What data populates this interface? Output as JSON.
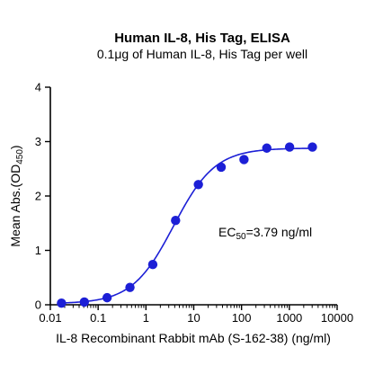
{
  "chart_data": {
    "type": "scatter",
    "title": "Human IL-8, His Tag, ELISA",
    "subtitle": "0.1μg of Human IL-8, His Tag per well",
    "xlabel": "IL-8 Recombinant Rabbit mAb (S-162-38) (ng/ml)",
    "ylabel_prefix": "Mean Abs.(OD",
    "ylabel_sub": "450",
    "ylabel_suffix": ")",
    "x_scale": "log",
    "xlim": [
      0.01,
      10000
    ],
    "ylim": [
      0,
      4
    ],
    "x_ticks": [
      0.01,
      0.1,
      1,
      10,
      100,
      1000,
      10000
    ],
    "x_tick_labels": [
      "0.01",
      "0.1",
      "1",
      "10",
      "100",
      "1000",
      "10000"
    ],
    "y_ticks": [
      0,
      1,
      2,
      3,
      4
    ],
    "y_tick_labels": [
      "0",
      "1",
      "2",
      "3",
      "4"
    ],
    "grid": false,
    "series": [
      {
        "x": [
          0.0171,
          0.0514,
          0.154,
          0.463,
          1.39,
          4.17,
          12.5,
          37.5,
          112.5,
          337.5,
          1012.5,
          3037.5
        ],
        "y": [
          0.03,
          0.05,
          0.13,
          0.32,
          0.74,
          1.55,
          2.21,
          2.53,
          2.67,
          2.88,
          2.9,
          2.9
        ],
        "color": "#1c1fd6"
      }
    ],
    "fit": {
      "model": "4PL",
      "bottom": 0.02,
      "top": 2.88,
      "ec50": 3.79,
      "hill": 1.0,
      "color": "#1c1fd6"
    },
    "annotation": {
      "prefix": "EC",
      "sub": "50",
      "suffix": "=3.79 ng/ml"
    }
  }
}
